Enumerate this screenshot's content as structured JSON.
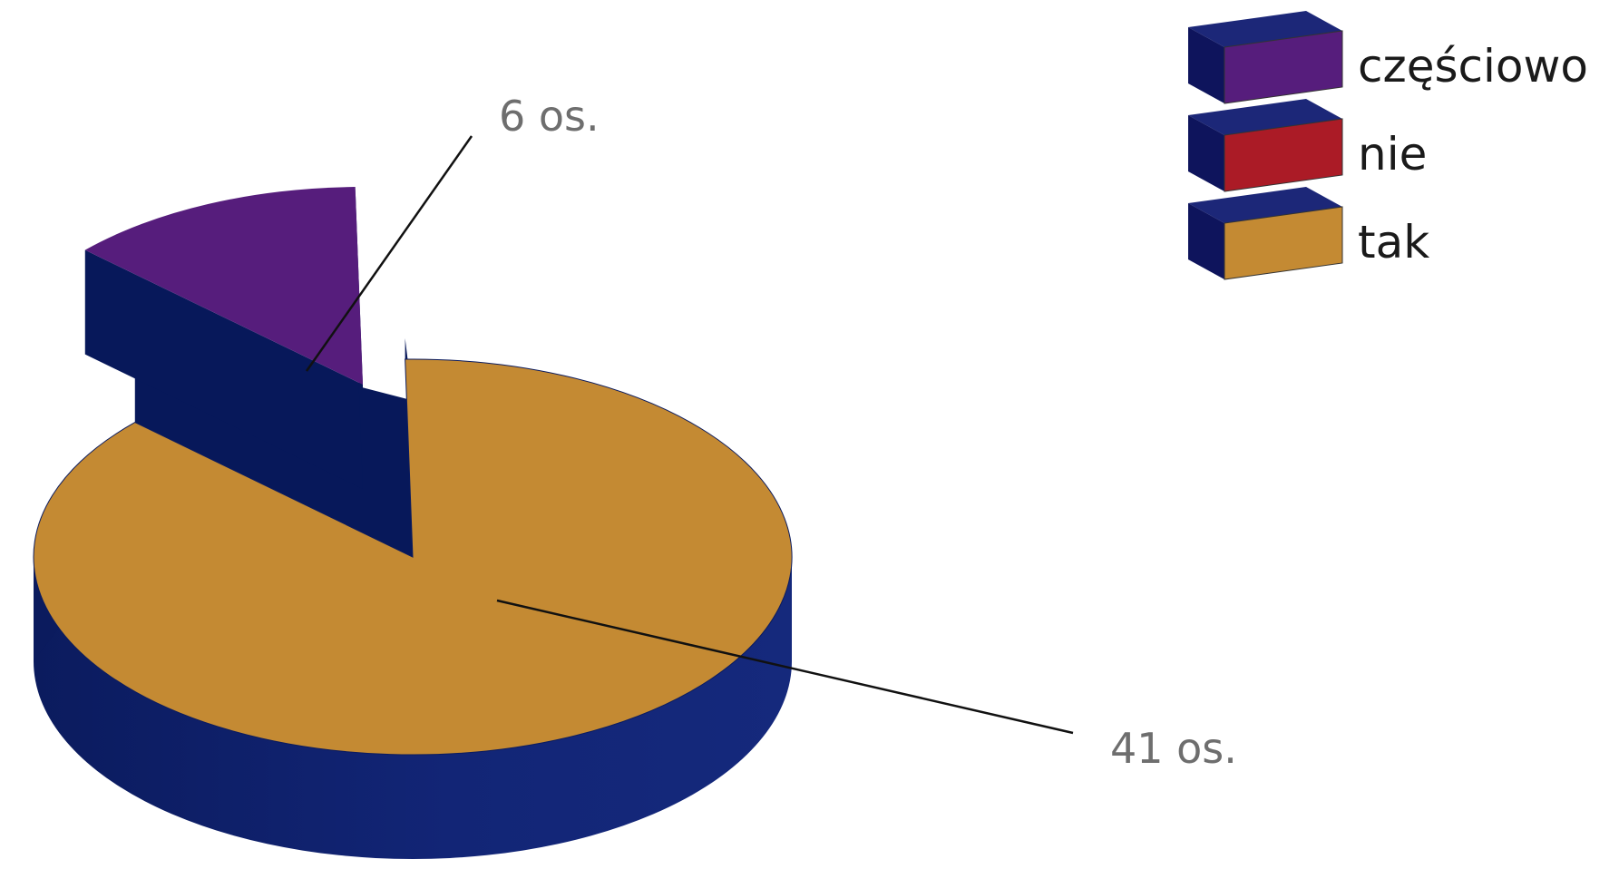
{
  "chart_data": {
    "type": "pie",
    "style": "3d-exploded",
    "series": [
      {
        "categories": [
          "częściowo",
          "nie",
          "tak"
        ],
        "values": [
          6,
          0,
          41
        ],
        "labels": [
          "6 os.",
          "",
          "41 os."
        ]
      }
    ],
    "legend": {
      "position": "top-right",
      "entries": [
        "częściowo",
        "nie",
        "tak"
      ]
    },
    "colors": {
      "częściowo": "#561d7c",
      "nie": "#ab1b26",
      "tak": "#c48a33",
      "side": "#0b1b5e",
      "side_light": "#15277a",
      "legend_top": "#1c2778",
      "legend_side": "#0e145c"
    }
  }
}
